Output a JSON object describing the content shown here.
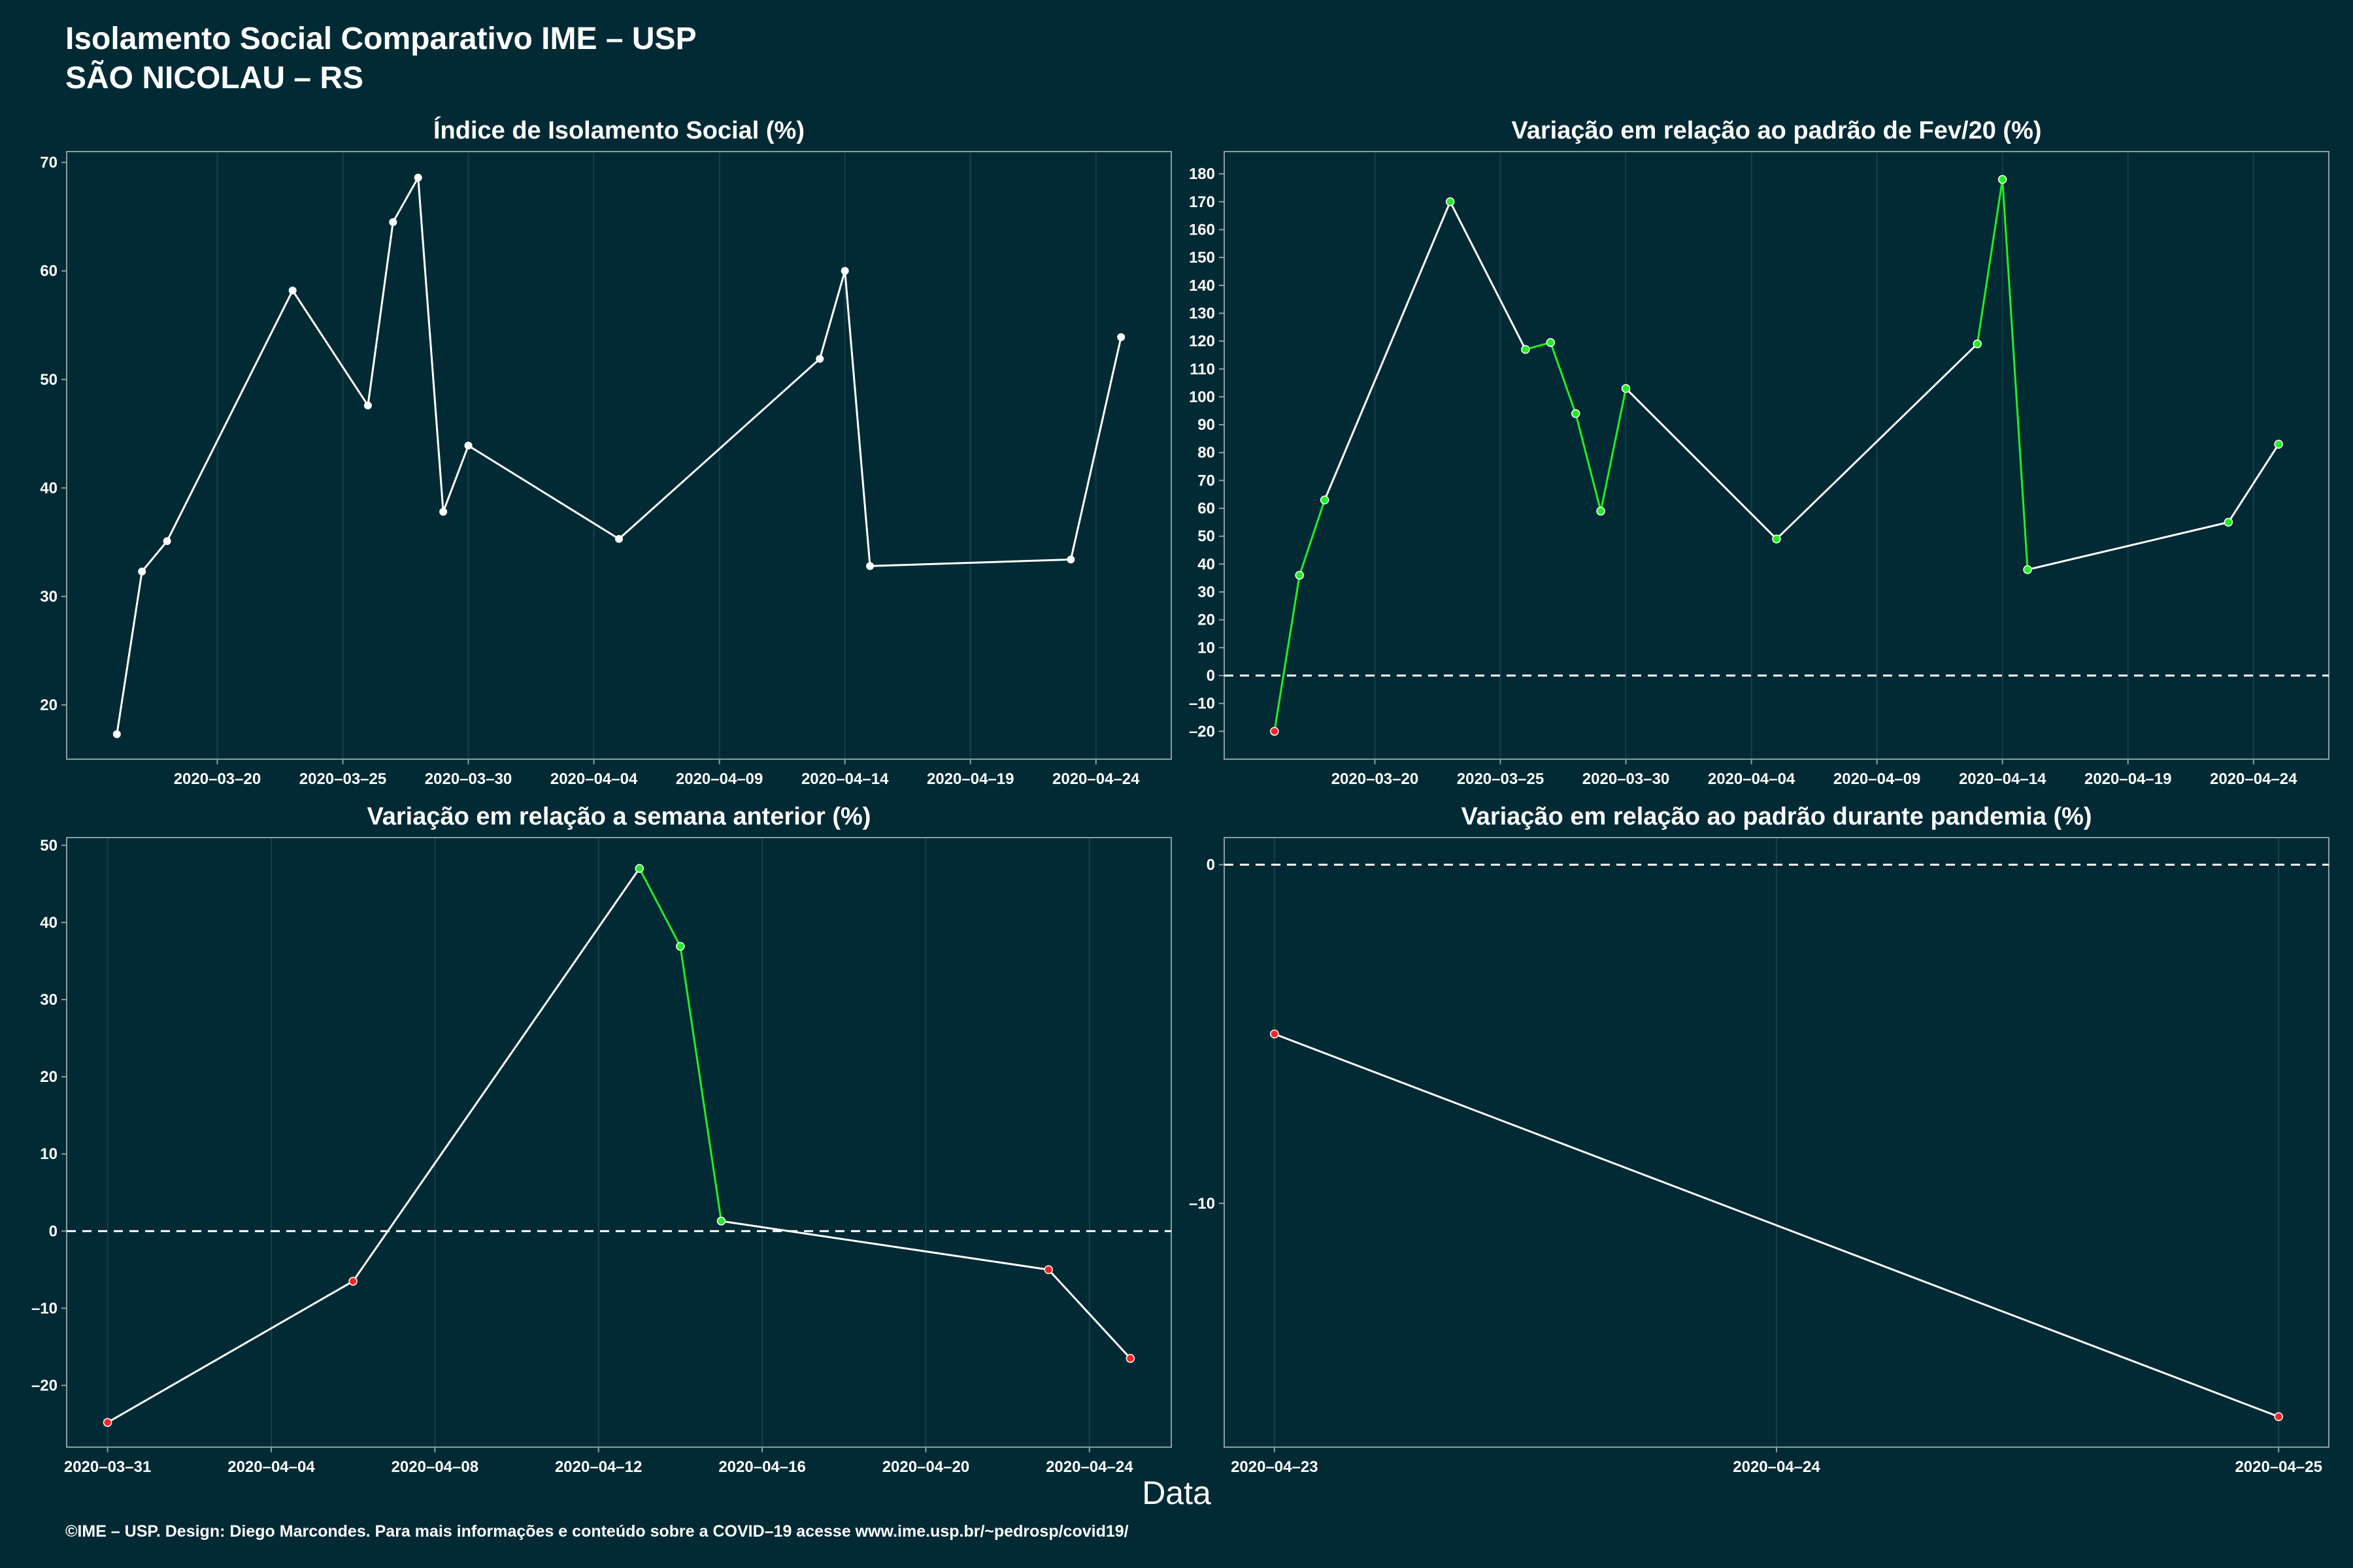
{
  "header": {
    "title": "Isolamento Social Comparativo IME – USP",
    "subtitle": "SÃO NICOLAU – RS"
  },
  "x_axis_label": "Data",
  "footer": "©IME – USP. Design: Diego Marcondes. Para mais informações e conteúdo sobre a COVID–19 acesse www.ime.usp.br/~pedrosp/covid19/",
  "colors": {
    "background": "#022a35",
    "line": "#ffffff",
    "positive": "#22ee22",
    "negative": "#ff2222",
    "grid": "#17404a"
  },
  "chart_data": [
    {
      "type": "line",
      "title": "Índice de Isolamento Social (%)",
      "x_type": "date",
      "xlim": [
        "2020-03-14",
        "2020-04-27"
      ],
      "x_ticks": [
        "2020-03-20",
        "2020-03-25",
        "2020-03-30",
        "2020-04-04",
        "2020-04-09",
        "2020-04-14",
        "2020-04-19",
        "2020-04-24"
      ],
      "x_tick_labels": [
        "2020–03–20",
        "2020–03–25",
        "2020–03–30",
        "2020–04–04",
        "2020–04–09",
        "2020–04–14",
        "2020–04–19",
        "2020–04–24"
      ],
      "ylim": [
        15,
        71
      ],
      "y_ticks": [
        20,
        30,
        40,
        50,
        60,
        70
      ],
      "y_tick_labels": [
        "20",
        "30",
        "40",
        "50",
        "60",
        "70"
      ],
      "point_color_mode": "white",
      "zero_line": false,
      "points": [
        {
          "x": "2020-03-16",
          "y": 17.3
        },
        {
          "x": "2020-03-17",
          "y": 32.3
        },
        {
          "x": "2020-03-18",
          "y": 35.1
        },
        {
          "x": "2020-03-23",
          "y": 58.2
        },
        {
          "x": "2020-03-26",
          "y": 47.6
        },
        {
          "x": "2020-03-27",
          "y": 64.5
        },
        {
          "x": "2020-03-28",
          "y": 68.6
        },
        {
          "x": "2020-03-29",
          "y": 37.8
        },
        {
          "x": "2020-03-30",
          "y": 43.9
        },
        {
          "x": "2020-04-05",
          "y": 35.3
        },
        {
          "x": "2020-04-13",
          "y": 51.9
        },
        {
          "x": "2020-04-14",
          "y": 60.0
        },
        {
          "x": "2020-04-15",
          "y": 32.8
        },
        {
          "x": "2020-04-23",
          "y": 33.4
        },
        {
          "x": "2020-04-25",
          "y": 53.9
        }
      ]
    },
    {
      "type": "line",
      "title": "Variação em relação ao padrão de Fev/20 (%)",
      "x_type": "date",
      "xlim": [
        "2020-03-14",
        "2020-04-27"
      ],
      "x_ticks": [
        "2020-03-20",
        "2020-03-25",
        "2020-03-30",
        "2020-04-04",
        "2020-04-09",
        "2020-04-14",
        "2020-04-19",
        "2020-04-24"
      ],
      "x_tick_labels": [
        "2020–03–20",
        "2020–03–25",
        "2020–03–30",
        "2020–04–04",
        "2020–04–09",
        "2020–04–14",
        "2020–04–19",
        "2020–04–24"
      ],
      "ylim": [
        -30,
        188
      ],
      "y_ticks": [
        -20,
        -10,
        0,
        10,
        20,
        30,
        40,
        50,
        60,
        70,
        80,
        90,
        100,
        110,
        120,
        130,
        140,
        150,
        160,
        170,
        180
      ],
      "y_tick_labels": [
        "–20",
        "–10",
        "0",
        "10",
        "20",
        "30",
        "40",
        "50",
        "60",
        "70",
        "80",
        "90",
        "100",
        "110",
        "120",
        "130",
        "140",
        "150",
        "160",
        "170",
        "180"
      ],
      "point_color_mode": "sign",
      "zero_line": true,
      "points": [
        {
          "x": "2020-03-16",
          "y": -20
        },
        {
          "x": "2020-03-17",
          "y": 36
        },
        {
          "x": "2020-03-18",
          "y": 63
        },
        {
          "x": "2020-03-23",
          "y": 170
        },
        {
          "x": "2020-03-26",
          "y": 117
        },
        {
          "x": "2020-03-27",
          "y": 119.5
        },
        {
          "x": "2020-03-28",
          "y": 94
        },
        {
          "x": "2020-03-29",
          "y": 59
        },
        {
          "x": "2020-03-30",
          "y": 103
        },
        {
          "x": "2020-04-05",
          "y": 49
        },
        {
          "x": "2020-04-13",
          "y": 119
        },
        {
          "x": "2020-04-14",
          "y": 178
        },
        {
          "x": "2020-04-15",
          "y": 38
        },
        {
          "x": "2020-04-23",
          "y": 55
        },
        {
          "x": "2020-04-25",
          "y": 83
        }
      ]
    },
    {
      "type": "line",
      "title": "Variação em relação a semana anterior (%)",
      "x_type": "date",
      "xlim": [
        "2020-03-30",
        "2020-04-26"
      ],
      "x_ticks": [
        "2020-03-31",
        "2020-04-04",
        "2020-04-08",
        "2020-04-12",
        "2020-04-16",
        "2020-04-20",
        "2020-04-24"
      ],
      "x_tick_labels": [
        "2020–03–31",
        "2020–04–04",
        "2020–04–08",
        "2020–04–12",
        "2020–04–16",
        "2020–04–20",
        "2020–04–24"
      ],
      "ylim": [
        -28,
        51
      ],
      "y_ticks": [
        -20,
        -10,
        0,
        10,
        20,
        30,
        40,
        50
      ],
      "y_tick_labels": [
        "–20",
        "–10",
        "0",
        "10",
        "20",
        "30",
        "40",
        "50"
      ],
      "point_color_mode": "sign",
      "zero_line": true,
      "points": [
        {
          "x": "2020-03-31",
          "y": -24.8
        },
        {
          "x": "2020-04-06",
          "y": -6.5
        },
        {
          "x": "2020-04-13",
          "y": 47.0
        },
        {
          "x": "2020-04-14",
          "y": 36.9
        },
        {
          "x": "2020-04-15",
          "y": 1.3
        },
        {
          "x": "2020-04-23",
          "y": -5.0
        },
        {
          "x": "2020-04-25",
          "y": -16.5
        }
      ]
    },
    {
      "type": "line",
      "title": "Variação em relação ao padrão durante pandemia (%)",
      "x_type": "date",
      "xlim": [
        "2020-04-22.9",
        "2020-04-25.1"
      ],
      "x_ticks": [
        "2020-04-23",
        "2020-04-24",
        "2020-04-25"
      ],
      "x_tick_labels": [
        "2020–04–23",
        "2020–04–24",
        "2020–04–25"
      ],
      "ylim": [
        -17.2,
        0.8
      ],
      "y_ticks": [
        -10,
        0
      ],
      "y_tick_labels": [
        "–10",
        "0"
      ],
      "point_color_mode": "sign",
      "zero_line": true,
      "points": [
        {
          "x": "2020-04-23",
          "y": -5.0
        },
        {
          "x": "2020-04-25",
          "y": -16.3
        }
      ]
    }
  ]
}
